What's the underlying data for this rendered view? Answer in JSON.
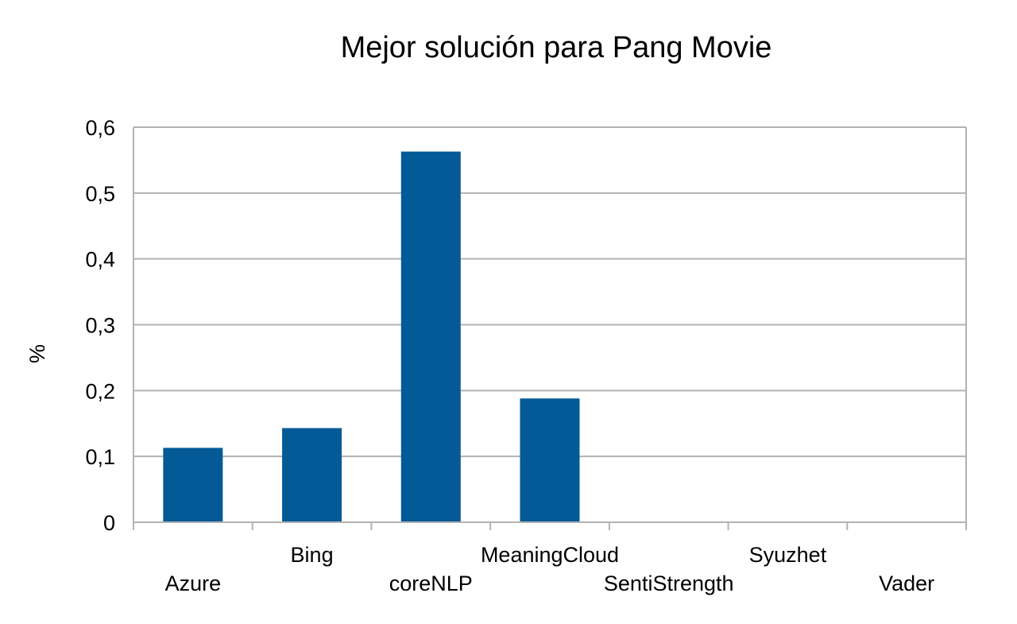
{
  "chart_data": {
    "type": "bar",
    "title": "Mejor solución para Pang Movie",
    "xlabel": "",
    "ylabel": "%",
    "categories": [
      "Azure",
      "Bing",
      "coreNLP",
      "MeaningCloud",
      "SentiStrength",
      "Syuzhet",
      "Vader"
    ],
    "values": [
      0.113,
      0.143,
      0.563,
      0.188,
      0,
      0,
      0
    ],
    "ylim": [
      0,
      0.6
    ],
    "yticks": [
      0,
      0.1,
      0.2,
      0.3,
      0.4,
      0.5,
      0.6
    ],
    "ytick_labels": [
      "0",
      "0,1",
      "0,2",
      "0,3",
      "0,4",
      "0,5",
      "0,6"
    ],
    "grid": true,
    "legend": "none",
    "bar_color": "#045a97"
  }
}
